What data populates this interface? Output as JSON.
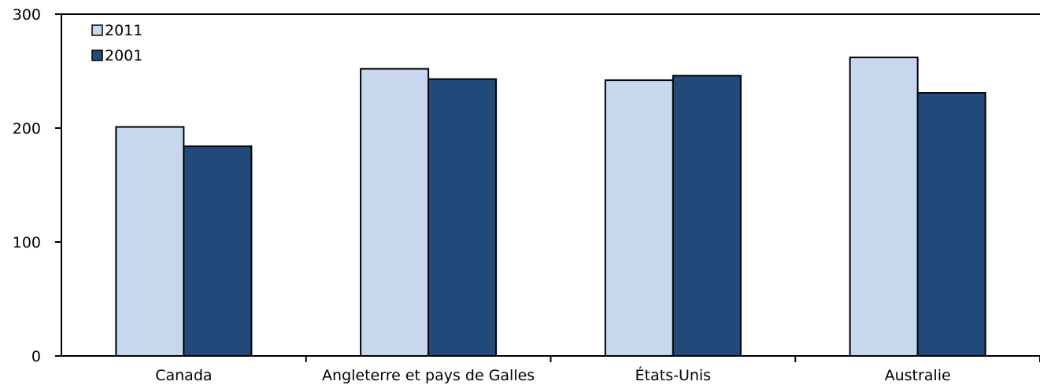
{
  "chart_data": {
    "type": "bar",
    "categories": [
      "Canada",
      "Angleterre et pays de Galles",
      "États-Unis",
      "Australie"
    ],
    "series": [
      {
        "name": "2011",
        "values": [
          201,
          252,
          242,
          262
        ],
        "color": "#c6d7ee"
      },
      {
        "name": "2001",
        "values": [
          184,
          243,
          246,
          231
        ],
        "color": "#214a7b"
      }
    ],
    "yticks": [
      "0",
      "100",
      "200",
      "300"
    ],
    "ylim": [
      0,
      300
    ],
    "grid": false,
    "legend_position": "top-left",
    "title": "",
    "xlabel": "",
    "ylabel": ""
  }
}
